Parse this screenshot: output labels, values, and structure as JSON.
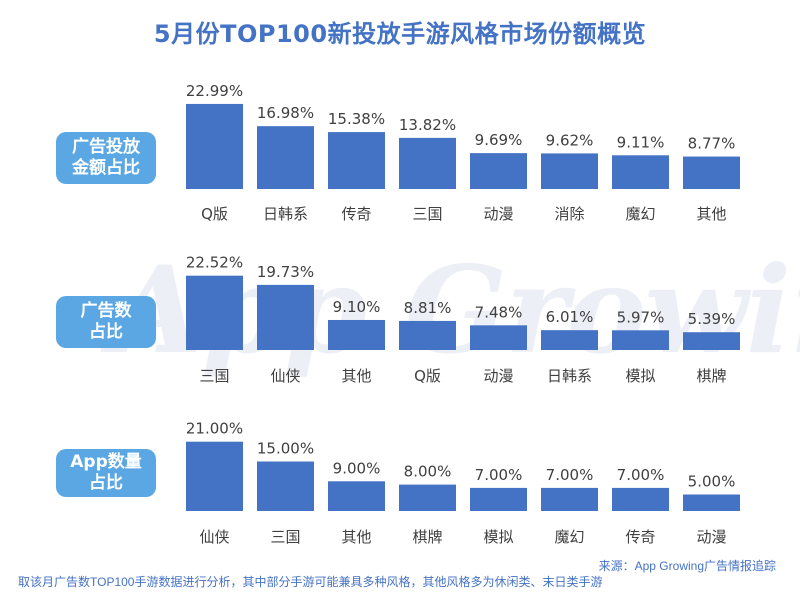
{
  "title": "5月份TOP100新投放手游风格市场份额概览",
  "watermark": "App Growing",
  "source": "来源：App Growing广告情报追踪",
  "note": "取该月广告数TOP100手游数据进行分析，其中部分手游可能兼具多种风格，其他风格多为休闲类、末日类手游",
  "colors": {
    "bar": "#4472c4",
    "label_bg": "#5ba7e3",
    "title": "#4472c4"
  },
  "panels": [
    {
      "label_lines": [
        "广告投放",
        "金额占比"
      ]
    },
    {
      "label_lines": [
        "广告数",
        "占比"
      ]
    },
    {
      "label_lines": [
        "App数量",
        "占比"
      ]
    }
  ],
  "chart_data": [
    {
      "type": "bar",
      "title": "广告投放金额占比",
      "categories": [
        "Q版",
        "日韩系",
        "传奇",
        "三国",
        "动漫",
        "消除",
        "魔幻",
        "其他"
      ],
      "values": [
        22.99,
        16.98,
        15.38,
        13.82,
        9.69,
        9.62,
        9.11,
        8.77
      ],
      "value_labels": [
        "22.99%",
        "16.98%",
        "15.38%",
        "13.82%",
        "9.69%",
        "9.62%",
        "9.11%",
        "8.77%"
      ],
      "unit": "%",
      "grid": false
    },
    {
      "type": "bar",
      "title": "广告数占比",
      "categories": [
        "三国",
        "仙侠",
        "其他",
        "Q版",
        "动漫",
        "日韩系",
        "模拟",
        "棋牌"
      ],
      "values": [
        22.52,
        19.73,
        9.1,
        8.81,
        7.48,
        6.01,
        5.97,
        5.39
      ],
      "value_labels": [
        "22.52%",
        "19.73%",
        "9.10%",
        "8.81%",
        "7.48%",
        "6.01%",
        "5.97%",
        "5.39%"
      ],
      "unit": "%",
      "grid": false
    },
    {
      "type": "bar",
      "title": "App数量占比",
      "categories": [
        "仙侠",
        "三国",
        "其他",
        "棋牌",
        "模拟",
        "魔幻",
        "传奇",
        "动漫"
      ],
      "values": [
        21.0,
        15.0,
        9.0,
        8.0,
        7.0,
        7.0,
        7.0,
        5.0
      ],
      "value_labels": [
        "21.00%",
        "15.00%",
        "9.00%",
        "8.00%",
        "7.00%",
        "7.00%",
        "7.00%",
        "5.00%"
      ],
      "unit": "%",
      "grid": false
    }
  ]
}
